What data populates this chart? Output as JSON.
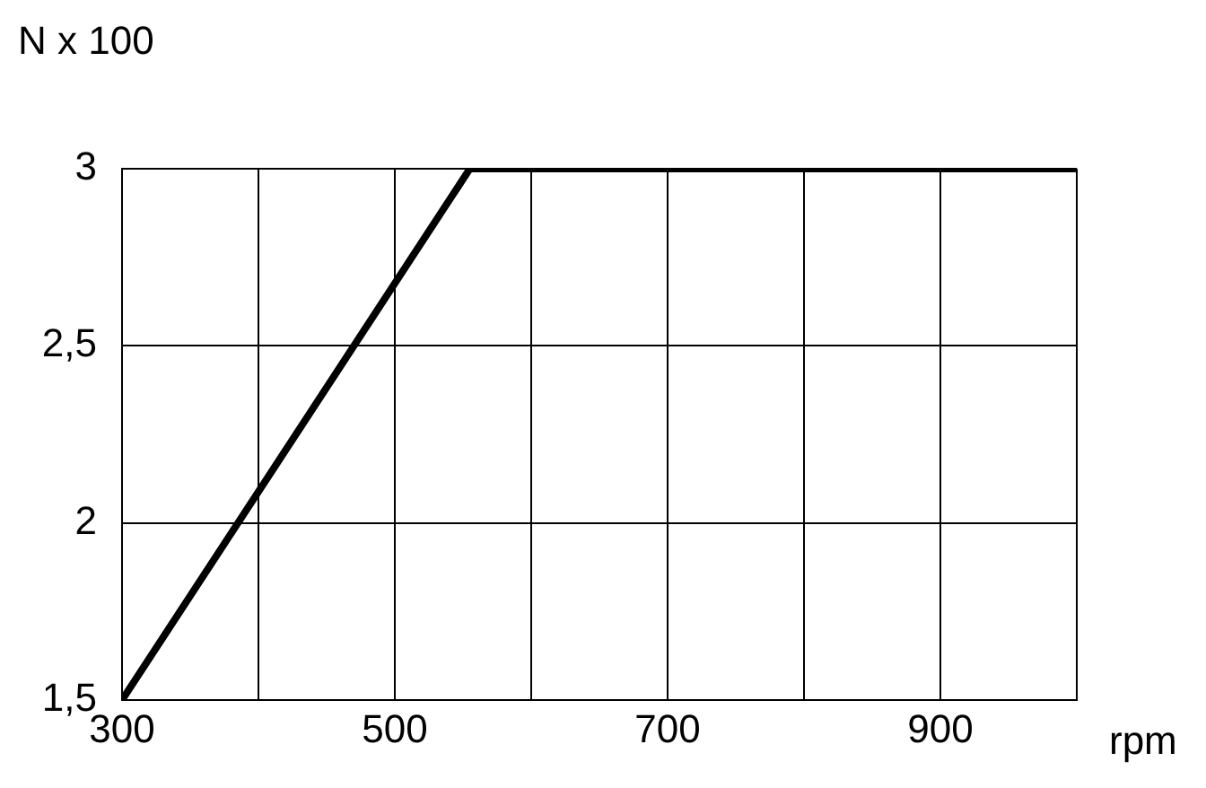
{
  "chart_data": {
    "type": "line",
    "xlabel": "rpm",
    "ylabel": "N x 100",
    "x": [
      300,
      555,
      1000
    ],
    "series": [
      {
        "color": "#000000",
        "values": [
          1.5,
          3,
          3
        ]
      }
    ],
    "xlim": [
      300,
      1000
    ],
    "xticks": [
      300,
      {
        "value": 400,
        "label": null
      },
      500,
      {
        "value": 600,
        "label": null
      },
      700,
      {
        "value": 800,
        "label": null
      },
      900,
      {
        "value": 1000,
        "label": null
      }
    ],
    "ylim": [
      1.5,
      3
    ],
    "yticks": [
      {
        "value": 1.5,
        "label": "1,5"
      },
      2,
      {
        "value": 2.5,
        "label": "2,5"
      },
      3
    ],
    "grid": true,
    "legend": false,
    "marker": "none",
    "line_style": "solid"
  }
}
